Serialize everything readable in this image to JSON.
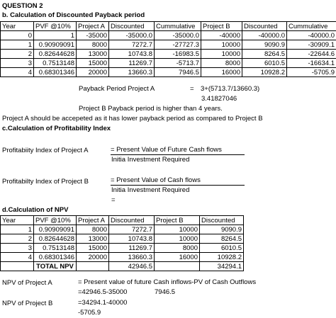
{
  "question_title": "QUESTION 2",
  "section_b": {
    "title": "b. Calculation of Discounted Payback period",
    "headers": [
      "Year",
      "PVF @10%",
      "Project A",
      "Discounted",
      "Cummulative",
      "Project B",
      "Discounted",
      "Cummulative"
    ],
    "rows": [
      [
        "0",
        "1",
        "-35000",
        "-35000.0",
        "-35000.0",
        "-40000",
        "-40000.0",
        "-40000.0"
      ],
      [
        "1",
        "0.90909091",
        "8000",
        "7272.7",
        "-27727.3",
        "10000",
        "9090.9",
        "-30909.1"
      ],
      [
        "2",
        "0.82644628",
        "13000",
        "10743.8",
        "-16983.5",
        "10000",
        "8264.5",
        "-22644.6"
      ],
      [
        "3",
        "0.7513148",
        "15000",
        "11269.7",
        "-5713.7",
        "8000",
        "6010.5",
        "-16634.1"
      ],
      [
        "4",
        "0.68301346",
        "20000",
        "13660.3",
        "7946.5",
        "16000",
        "10928.2",
        "-5705.9"
      ]
    ],
    "payback_label": "Payback Period Project A",
    "payback_eq": "=",
    "payback_formula": "3+(5713.7/13660.3)",
    "payback_result": "3.41827046",
    "project_b_note": "Project B Payback period is higher than 4 years.",
    "conclusion": "Project A should be accepeted as it has lower payback period as compared to Project B"
  },
  "section_c": {
    "title": "c.Calculation of Profitability Index",
    "pi_a_label": "Profitabiity Index of Project A",
    "pi_a_numerator": "= Present Value of Future Cash flows",
    "pi_a_denominator": "Initia Investment Required",
    "pi_b_label": "Profitabilty Index of Project B",
    "pi_b_numerator": "= Present Value of Cash flows",
    "pi_b_denominator": "Initia Investment Required",
    "pi_b_eq": "="
  },
  "section_d": {
    "title": "d.Calculation of NPV",
    "headers": [
      "Year",
      "PVF @10%",
      "Project A",
      "Discounted",
      "Project B",
      "Discounted"
    ],
    "rows": [
      [
        "1",
        "0.90909091",
        "8000",
        "7272.7",
        "10000",
        "9090.9"
      ],
      [
        "2",
        "0.82644628",
        "13000",
        "10743.8",
        "10000",
        "8264.5"
      ],
      [
        "3",
        "0.7513148",
        "15000",
        "11269.7",
        "8000",
        "6010.5"
      ],
      [
        "4",
        "0.68301346",
        "20000",
        "13660.3",
        "16000",
        "10928.2"
      ]
    ],
    "total_label": "TOTAL NPV",
    "total_a": "42946.5",
    "total_b": "34294.1",
    "npv_a_label": "NPV of Project A",
    "npv_formula": "= Present value of future Cash inflows-PV of Cash Outflows",
    "npv_a_calc": "=42946.5-35000",
    "npv_a_result": "7946.5",
    "npv_b_label": "NPV of Project B",
    "npv_b_calc": "=34294.1-40000",
    "npv_b_result": "-5705.9"
  }
}
